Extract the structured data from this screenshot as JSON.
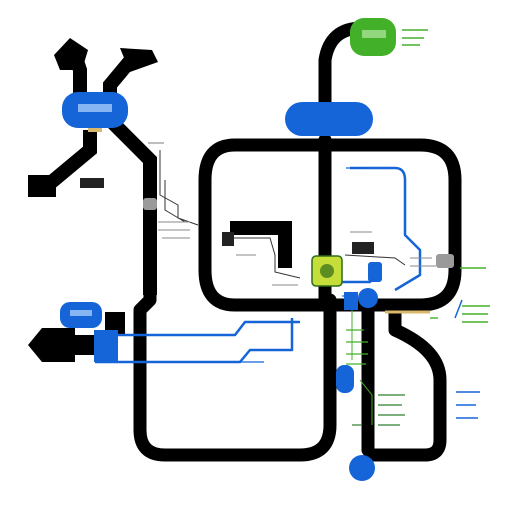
{
  "diagram": {
    "type": "pipeline schematic",
    "colors": {
      "pipe": "#000000",
      "blue_node": "#1565d8",
      "green_node": "#43b02a",
      "yellow_green_node": "#c6de3a",
      "tan_pipe": "#d8b86a",
      "gray_tag": "#9a9a9a",
      "background": "#ffffff"
    },
    "nodes": [
      {
        "id": "top-right-green-node",
        "shape": "rounded-rect",
        "color": "#43b02a"
      },
      {
        "id": "top-center-blue-node",
        "shape": "pill",
        "color": "#1565d8"
      },
      {
        "id": "left-blue-node",
        "shape": "rounded-rect",
        "color": "#1565d8"
      },
      {
        "id": "left-bottom-blue-node",
        "shape": "rounded-rect",
        "color": "#1565d8"
      },
      {
        "id": "center-junction-node",
        "shape": "square",
        "color": "#c6de3a"
      },
      {
        "id": "right-blue-valve",
        "shape": "circle",
        "color": "#1565d8"
      },
      {
        "id": "lower-blue-capsule",
        "shape": "capsule",
        "color": "#1565d8"
      },
      {
        "id": "bottom-blue-drop",
        "shape": "circle",
        "color": "#1565d8"
      }
    ],
    "icons": [
      "arrow-up-icon",
      "arrow-left-icon",
      "valve-icon",
      "junction-icon"
    ]
  }
}
